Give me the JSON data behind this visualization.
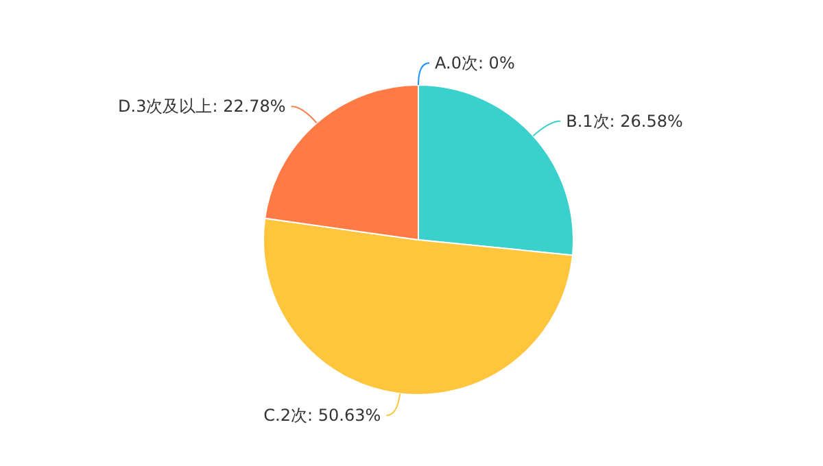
{
  "chart_data": {
    "type": "pie",
    "categories": [
      "A.0次",
      "B.1次",
      "C.2次",
      "D.3次及以上"
    ],
    "values": [
      0,
      26.58,
      50.63,
      22.78
    ],
    "value_labels": [
      "0%",
      "26.58%",
      "50.63%",
      "22.78%"
    ],
    "colors": [
      "#1890ff",
      "#3ad0cb",
      "#ffc53d",
      "#ff7a45"
    ]
  }
}
